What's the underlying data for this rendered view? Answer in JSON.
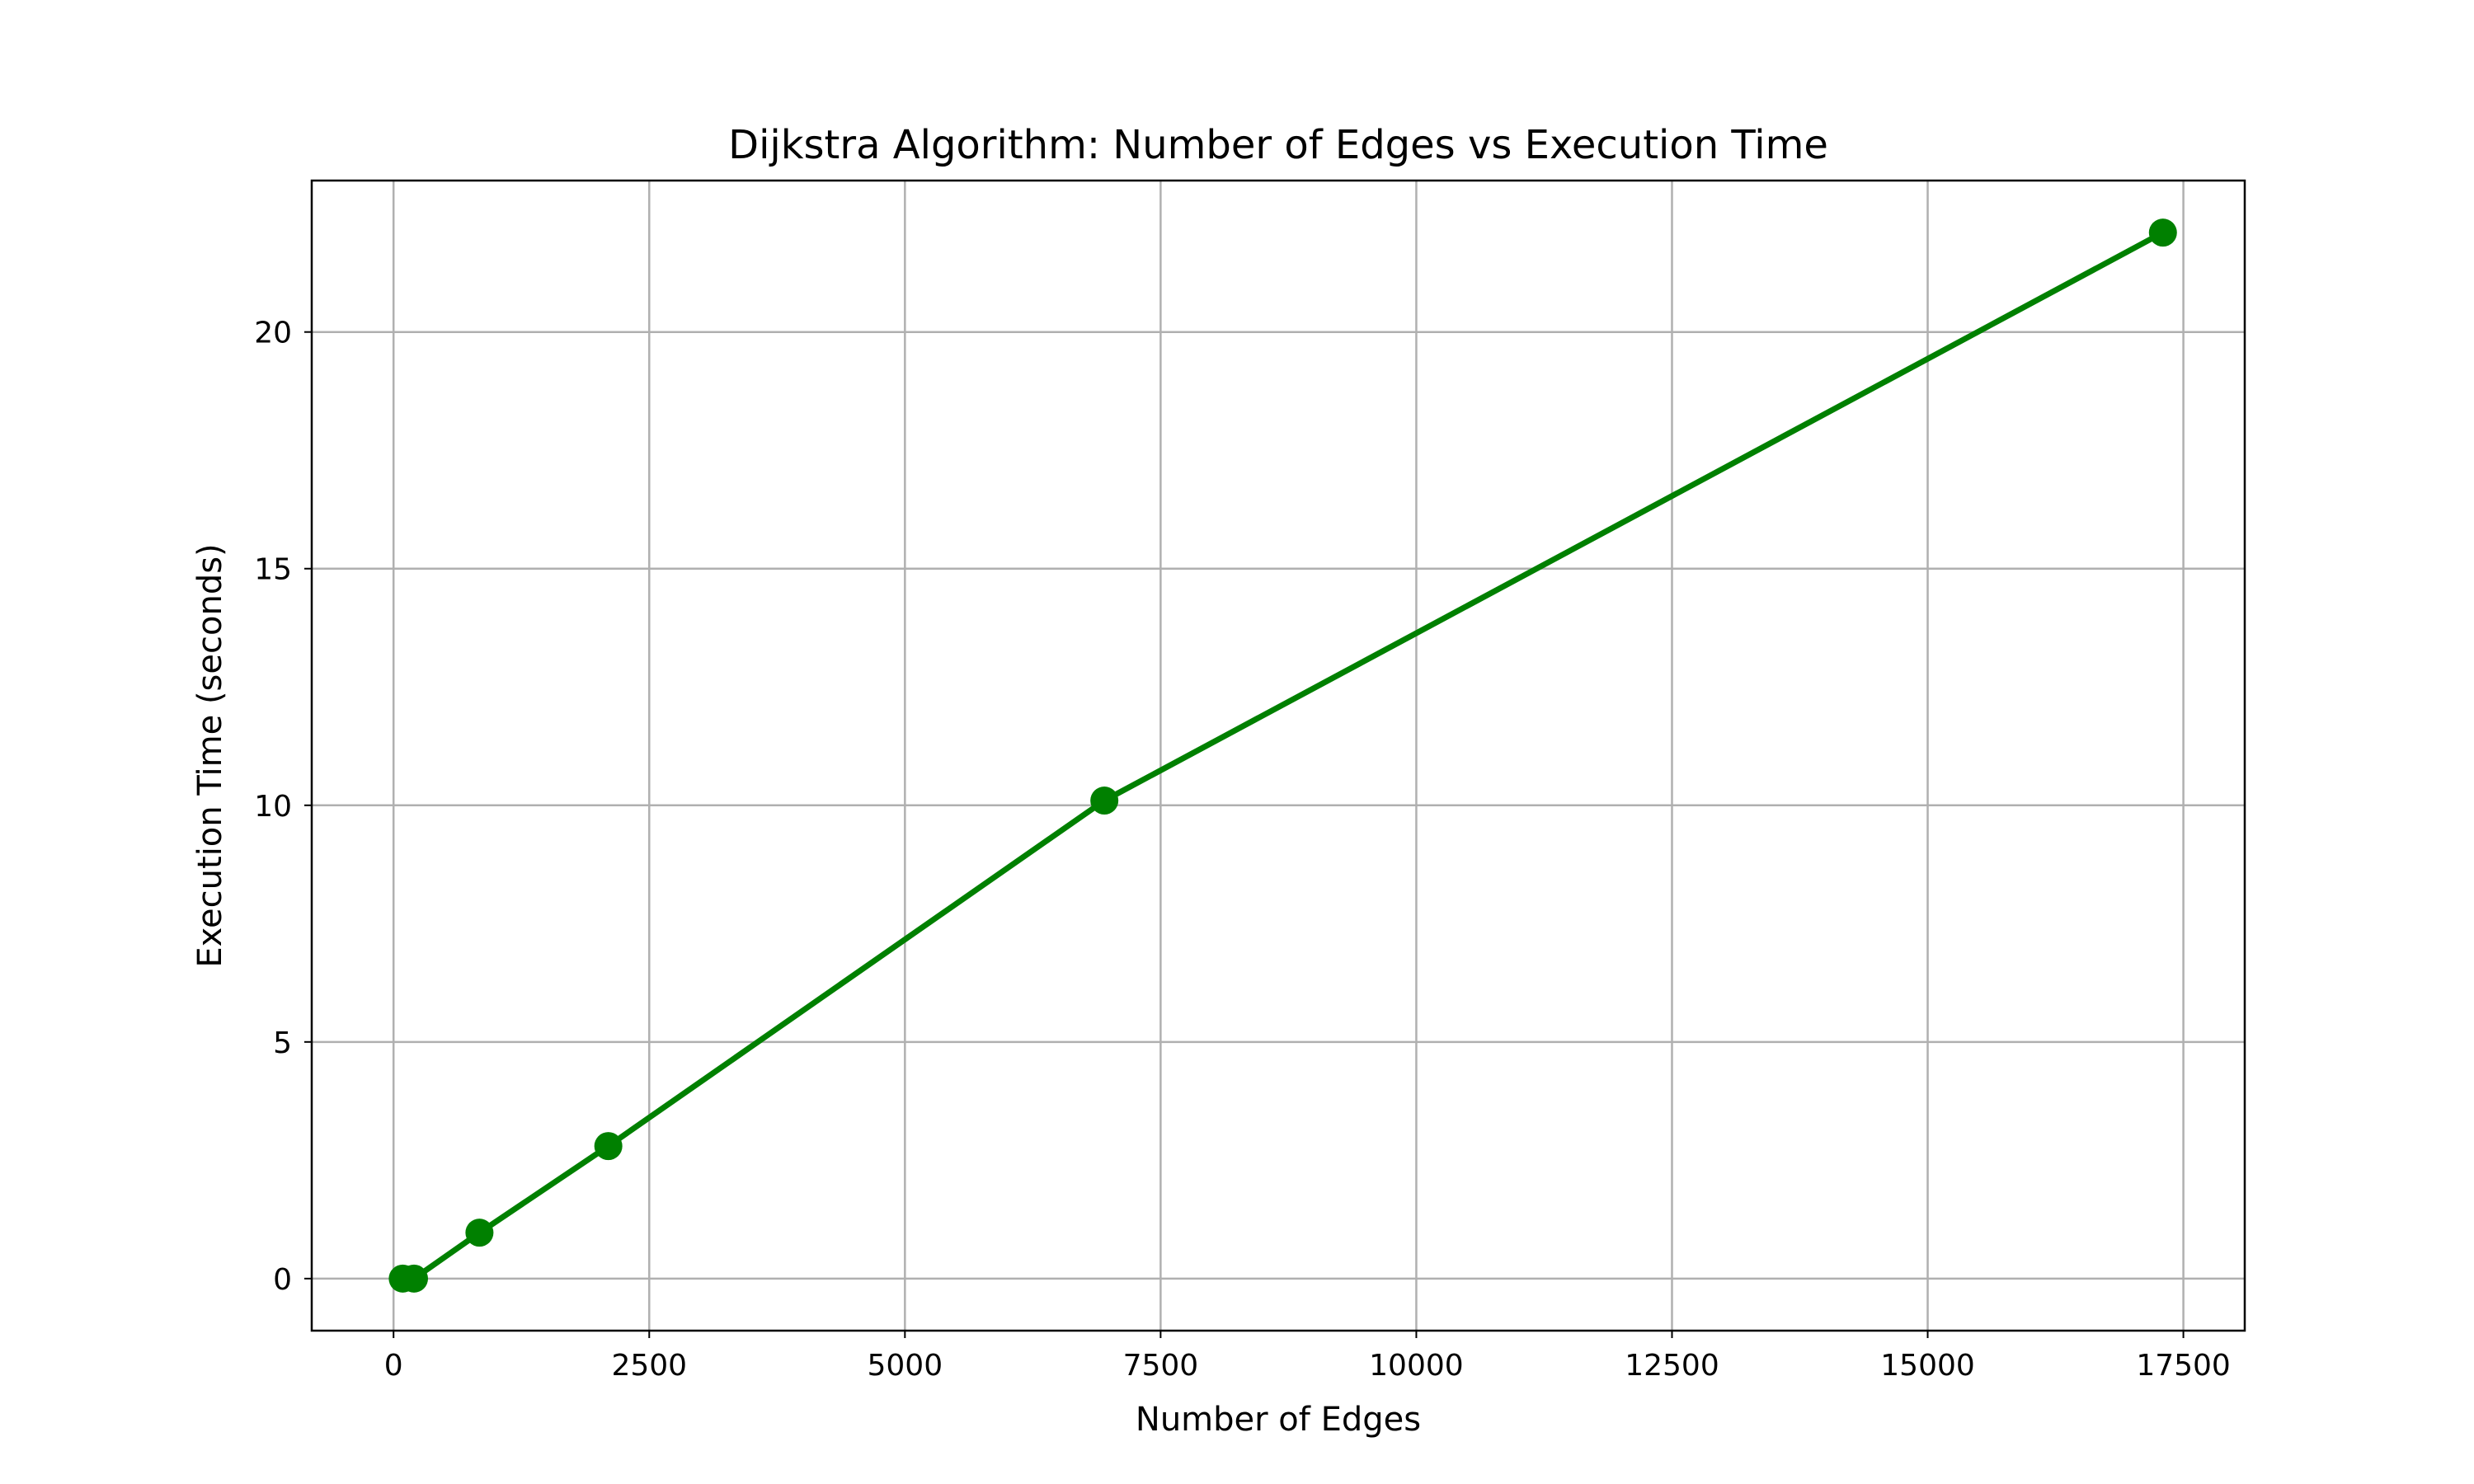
{
  "chart_data": {
    "type": "line",
    "title": "Dijkstra Algorithm: Number of Edges vs Execution Time",
    "xlabel": "Number of Edges",
    "ylabel": "Execution Time (seconds)",
    "xlim": [
      -800,
      18100
    ],
    "ylim": [
      -1.1,
      23.2
    ],
    "xticks": [
      0,
      2500,
      5000,
      7500,
      10000,
      12500,
      15000,
      17500
    ],
    "yticks": [
      0,
      5,
      10,
      15,
      20
    ],
    "grid": true,
    "legend": "none",
    "series": [
      {
        "color": "#008000",
        "marker": "circle",
        "points": [
          {
            "x": 90,
            "y": 0.0
          },
          {
            "x": 200,
            "y": 0.0
          },
          {
            "x": 840,
            "y": 0.97
          },
          {
            "x": 2100,
            "y": 2.8
          },
          {
            "x": 6950,
            "y": 10.1
          },
          {
            "x": 17300,
            "y": 22.1
          }
        ]
      }
    ]
  }
}
